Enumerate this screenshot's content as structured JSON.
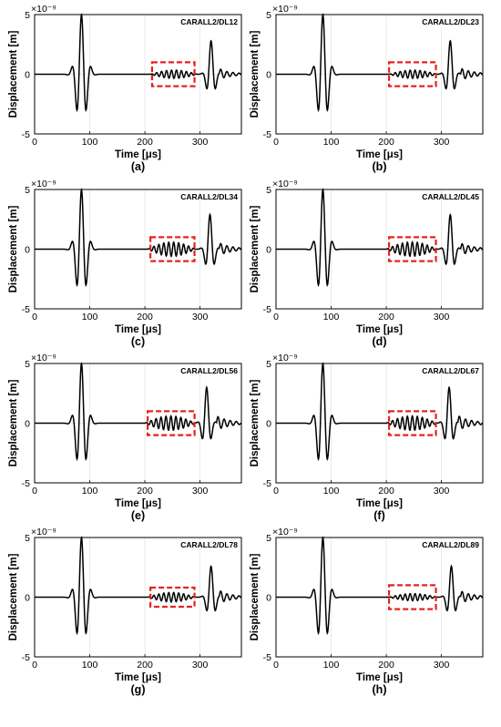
{
  "figure": {
    "panels": [
      {
        "tag": "CARALL2/DL12",
        "caption": "(a)"
      },
      {
        "tag": "CARALL2/DL23",
        "caption": "(b)"
      },
      {
        "tag": "CARALL2/DL34",
        "caption": "(c)"
      },
      {
        "tag": "CARALL2/DL45",
        "caption": "(d)"
      },
      {
        "tag": "CARALL2/DL56",
        "caption": "(e)"
      },
      {
        "tag": "CARALL2/DL67",
        "caption": "(f)"
      },
      {
        "tag": "CARALL2/DL78",
        "caption": "(g)"
      },
      {
        "tag": "CARALL2/DL89",
        "caption": "(h)"
      }
    ]
  },
  "chart_data": [
    {
      "type": "line",
      "tag": "CARALL2/DL12",
      "xlabel": "Time [μs]",
      "ylabel": "Displacement [m]",
      "y_exponent_label": "×10⁻⁹",
      "xlim": [
        0,
        375
      ],
      "ylim": [
        -5,
        5
      ],
      "xticks": [
        0,
        100,
        200,
        300
      ],
      "yticks": [
        -5,
        0,
        5
      ],
      "highlight_box": {
        "x": [
          213,
          290
        ],
        "y": [
          -1,
          1
        ],
        "color": "#e82020"
      },
      "pulses": [
        {
          "center": 85,
          "amp": 5,
          "width": 12
        },
        {
          "center": 320,
          "amp": 2.8,
          "width": 9
        }
      ],
      "ripple": {
        "start": 210,
        "end": 295,
        "amp": 0.35
      },
      "tail": {
        "start": 335,
        "end": 375,
        "amp": 0.4
      }
    },
    {
      "type": "line",
      "tag": "CARALL2/DL23",
      "xlabel": "Time [μs]",
      "ylabel": "Displacement [m]",
      "y_exponent_label": "×10⁻⁹",
      "xlim": [
        0,
        375
      ],
      "ylim": [
        -5,
        5
      ],
      "xticks": [
        0,
        100,
        200,
        300
      ],
      "yticks": [
        -5,
        0,
        5
      ],
      "highlight_box": {
        "x": [
          205,
          290
        ],
        "y": [
          -1,
          1
        ],
        "color": "#e82020"
      },
      "pulses": [
        {
          "center": 85,
          "amp": 5,
          "width": 12
        },
        {
          "center": 316,
          "amp": 2.8,
          "width": 9
        }
      ],
      "ripple": {
        "start": 205,
        "end": 292,
        "amp": 0.35
      },
      "tail": {
        "start": 335,
        "end": 375,
        "amp": 0.5
      }
    },
    {
      "type": "line",
      "tag": "CARALL2/DL34",
      "xlabel": "Time [μs]",
      "ylabel": "Displacement [m]",
      "y_exponent_label": "×10⁻⁹",
      "xlim": [
        0,
        375
      ],
      "ylim": [
        -5,
        5
      ],
      "xticks": [
        0,
        100,
        200,
        300
      ],
      "yticks": [
        -5,
        0,
        5
      ],
      "highlight_box": {
        "x": [
          210,
          290
        ],
        "y": [
          -1,
          1
        ],
        "color": "#e82020"
      },
      "pulses": [
        {
          "center": 85,
          "amp": 5,
          "width": 12
        },
        {
          "center": 318,
          "amp": 2.9,
          "width": 9
        }
      ],
      "ripple": {
        "start": 205,
        "end": 292,
        "amp": 0.6
      },
      "tail": {
        "start": 335,
        "end": 375,
        "amp": 0.5
      }
    },
    {
      "type": "line",
      "tag": "CARALL2/DL45",
      "xlabel": "Time [μs]",
      "ylabel": "Displacement [m]",
      "y_exponent_label": "×10⁻⁹",
      "xlim": [
        0,
        375
      ],
      "ylim": [
        -5,
        5
      ],
      "xticks": [
        0,
        100,
        200,
        300
      ],
      "yticks": [
        -5,
        0,
        5
      ],
      "highlight_box": {
        "x": [
          205,
          290
        ],
        "y": [
          -1,
          1
        ],
        "color": "#e82020"
      },
      "pulses": [
        {
          "center": 85,
          "amp": 5,
          "width": 12
        },
        {
          "center": 316,
          "amp": 2.9,
          "width": 9
        }
      ],
      "ripple": {
        "start": 200,
        "end": 292,
        "amp": 0.6
      },
      "tail": {
        "start": 335,
        "end": 375,
        "amp": 0.5
      }
    },
    {
      "type": "line",
      "tag": "CARALL2/DL56",
      "xlabel": "Time [μs]",
      "ylabel": "Displacement [m]",
      "y_exponent_label": "×10⁻⁹",
      "xlim": [
        0,
        375
      ],
      "ylim": [
        -5,
        5
      ],
      "xticks": [
        0,
        100,
        200,
        300
      ],
      "yticks": [
        -5,
        0,
        5
      ],
      "highlight_box": {
        "x": [
          205,
          290
        ],
        "y": [
          -1,
          1
        ],
        "color": "#e82020"
      },
      "pulses": [
        {
          "center": 85,
          "amp": 5,
          "width": 12
        },
        {
          "center": 312,
          "amp": 3,
          "width": 9
        }
      ],
      "ripple": {
        "start": 200,
        "end": 292,
        "amp": 0.6
      },
      "tail": {
        "start": 330,
        "end": 375,
        "amp": 0.6
      }
    },
    {
      "type": "line",
      "tag": "CARALL2/DL67",
      "xlabel": "Time [μs]",
      "ylabel": "Displacement [m]",
      "y_exponent_label": "×10⁻⁹",
      "xlim": [
        0,
        375
      ],
      "ylim": [
        -5,
        5
      ],
      "xticks": [
        0,
        100,
        200,
        300
      ],
      "yticks": [
        -5,
        0,
        5
      ],
      "highlight_box": {
        "x": [
          205,
          290
        ],
        "y": [
          -1,
          1
        ],
        "color": "#e82020"
      },
      "pulses": [
        {
          "center": 85,
          "amp": 5,
          "width": 12
        },
        {
          "center": 314,
          "amp": 3,
          "width": 9
        }
      ],
      "ripple": {
        "start": 200,
        "end": 292,
        "amp": 0.6
      },
      "tail": {
        "start": 330,
        "end": 375,
        "amp": 0.6
      }
    },
    {
      "type": "line",
      "tag": "CARALL2/DL78",
      "xlabel": "Time [μs]",
      "ylabel": "Displacement [m]",
      "y_exponent_label": "×10⁻⁹",
      "xlim": [
        0,
        375
      ],
      "ylim": [
        -5,
        5
      ],
      "xticks": [
        0,
        100,
        200,
        300
      ],
      "yticks": [
        -5,
        0,
        5
      ],
      "highlight_box": {
        "x": [
          210,
          290
        ],
        "y": [
          -0.8,
          0.8
        ],
        "color": "#e82020"
      },
      "pulses": [
        {
          "center": 85,
          "amp": 5,
          "width": 12
        },
        {
          "center": 320,
          "amp": 2.6,
          "width": 9
        }
      ],
      "ripple": {
        "start": 205,
        "end": 292,
        "amp": 0.4
      },
      "tail": {
        "start": 335,
        "end": 375,
        "amp": 0.5
      }
    },
    {
      "type": "line",
      "tag": "CARALL2/DL89",
      "xlabel": "Time [μs]",
      "ylabel": "Displacement [m]",
      "y_exponent_label": "×10⁻⁹",
      "xlim": [
        0,
        375
      ],
      "ylim": [
        -5,
        5
      ],
      "xticks": [
        0,
        100,
        200,
        300
      ],
      "yticks": [
        -5,
        0,
        5
      ],
      "highlight_box": {
        "x": [
          205,
          290
        ],
        "y": [
          -1,
          1
        ],
        "color": "#e82020"
      },
      "pulses": [
        {
          "center": 85,
          "amp": 5,
          "width": 12
        },
        {
          "center": 318,
          "amp": 2.6,
          "width": 9
        }
      ],
      "ripple": {
        "start": 205,
        "end": 292,
        "amp": 0.3
      },
      "tail": {
        "start": 335,
        "end": 375,
        "amp": 0.5
      }
    }
  ]
}
